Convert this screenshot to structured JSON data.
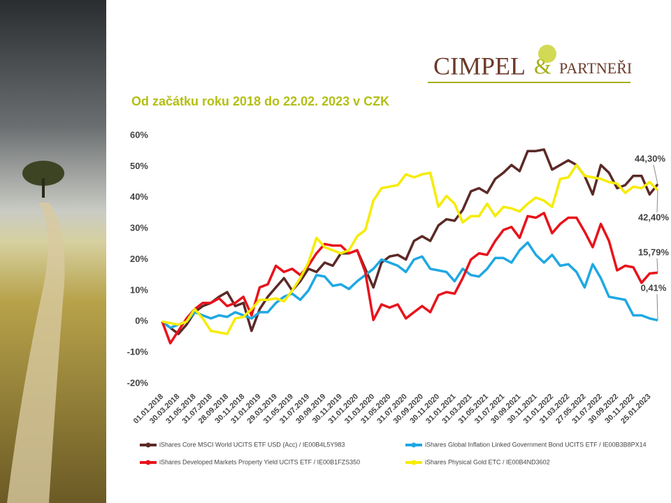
{
  "logo": {
    "name": "CIMPEL",
    "amp": "&",
    "partner": "PARTNEŘI"
  },
  "chart_data": {
    "type": "line",
    "title": "Od začátku roku 2018 do 22.02. 2023 v CZK",
    "categories": [
      "01.01.2018",
      null,
      "30.03.2018",
      null,
      "31.05.2018",
      null,
      "31.07.2018",
      null,
      "28.09.2018",
      null,
      "30.11.2018",
      null,
      "31.01.2019",
      null,
      "29.03.2019",
      null,
      "31.05.2019",
      null,
      "31.07.2019",
      null,
      "30.09.2019",
      null,
      "30.11.2019",
      null,
      "31.01.2020",
      null,
      "31.03.2020",
      null,
      "31.05.2020",
      null,
      "31.07.2020",
      null,
      "30.09.2020",
      null,
      "30.11.2020",
      null,
      "31.01.2021",
      null,
      "31.03.2021",
      null,
      "31.05.2021",
      null,
      "31.07.2021",
      null,
      "30.09.2021",
      null,
      "30.11.2021",
      null,
      "31.01.2022",
      null,
      "31.03.2022",
      null,
      "27.05.2022",
      null,
      "31.07.2022",
      null,
      "30.09.2022",
      null,
      "30.11.2022",
      null,
      "25.01.2023",
      null
    ],
    "ylim": [
      -20,
      60
    ],
    "yticks": [
      {
        "value": -20,
        "label": "-20%"
      },
      {
        "value": -10,
        "label": "-10%"
      },
      {
        "value": 0,
        "label": "0%"
      },
      {
        "value": 10,
        "label": "10%"
      },
      {
        "value": 20,
        "label": "20%"
      },
      {
        "value": 30,
        "label": "30%"
      },
      {
        "value": 40,
        "label": "40%"
      },
      {
        "value": 50,
        "label": "50%"
      },
      {
        "value": 60,
        "label": "60%"
      }
    ],
    "grid": false,
    "series": [
      {
        "name": "iShares Core MSCI World UCITS ETF USD (Acc) / IE00B4L5Y983",
        "color": "#5b2a27",
        "end_label": "44,30%",
        "values": [
          0,
          -2,
          -4,
          -1,
          3,
          5,
          6,
          8,
          9.5,
          5,
          6,
          -3,
          4,
          8,
          11,
          14,
          10,
          13,
          17,
          16,
          19,
          18,
          22,
          22,
          23,
          17,
          11,
          19,
          21,
          21.5,
          20,
          26,
          27.5,
          26,
          31,
          33,
          32.5,
          36,
          42,
          43,
          41.5,
          46,
          48,
          50.5,
          48.5,
          55,
          55,
          55.5,
          49,
          50.5,
          52,
          50.5,
          47,
          41,
          50.5,
          48,
          43,
          44,
          47,
          47,
          41,
          44.3
        ]
      },
      {
        "name": "iShares Global Inflation Linked Government Bond UCITS ETF / IE00B3B8PX14",
        "color": "#1fa8e2",
        "end_label": "0,41%",
        "values": [
          0,
          -2,
          -1,
          0,
          3,
          2,
          1,
          2,
          1.5,
          3,
          2,
          1,
          3,
          3,
          6,
          8,
          9,
          7,
          10,
          15,
          14.5,
          11.5,
          12,
          10.5,
          13,
          15,
          17,
          20,
          19,
          18,
          16,
          20,
          21,
          17,
          16.5,
          16,
          13,
          17,
          15,
          14.5,
          17,
          20.5,
          20.5,
          19,
          23,
          25.5,
          21.5,
          19,
          21.5,
          18,
          18.5,
          16,
          11,
          18.5,
          14,
          8,
          7.5,
          7,
          2,
          2,
          1,
          0.41
        ]
      },
      {
        "name": "iShares Developed Markets Property Yield UCITS ETF / IE00B1FZS350",
        "color": "#e8121b",
        "end_label": "15,79%",
        "values": [
          0,
          -7,
          -3,
          1,
          4,
          6,
          6,
          7.5,
          5,
          6,
          8,
          2,
          11,
          12,
          18,
          16,
          17,
          15,
          18,
          22,
          25,
          24.5,
          24.5,
          22,
          23,
          16,
          0.5,
          5.5,
          4.5,
          5.5,
          1,
          3,
          5,
          3,
          8.5,
          9.5,
          9,
          14,
          20,
          22,
          21.5,
          26,
          29.5,
          30.5,
          27,
          34,
          33.5,
          35,
          28.5,
          31.5,
          33.5,
          33.5,
          29,
          24,
          31.5,
          26,
          16.5,
          18,
          17.5,
          12.5,
          15.5,
          15.79
        ]
      },
      {
        "name": "iShares Physical Gold ETC / IE00B4ND3602",
        "color": "#f6ec00",
        "end_label": "42,40%",
        "values": [
          0,
          -0.5,
          -1,
          0,
          4,
          1,
          -3,
          -3.5,
          -4,
          1,
          1.5,
          4,
          7,
          7,
          7.5,
          6.5,
          10,
          14,
          19,
          27,
          24,
          23,
          22,
          23,
          27.5,
          29.5,
          39,
          43,
          43.5,
          44,
          47.5,
          46.5,
          47.5,
          48,
          37,
          40.5,
          38,
          32,
          34,
          34,
          38,
          34,
          37,
          36.5,
          35.5,
          38,
          40,
          39,
          37,
          46,
          46.5,
          50.5,
          47,
          46.5,
          46,
          45,
          44.5,
          41.5,
          43.5,
          43,
          45,
          42.4
        ]
      }
    ]
  }
}
